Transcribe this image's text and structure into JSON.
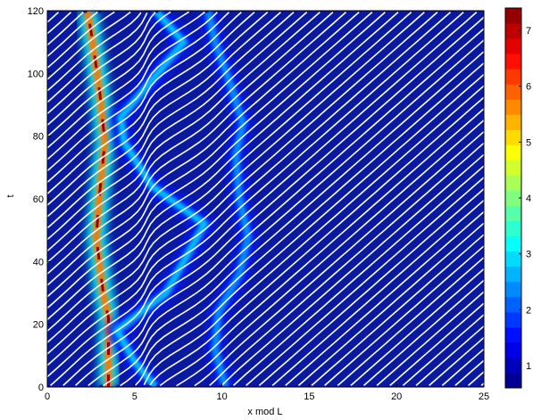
{
  "chart_data": {
    "type": "heatmap",
    "title": "",
    "xlabel": "x mod L",
    "ylabel": "t",
    "xlim": [
      0,
      25
    ],
    "ylim": [
      0,
      120
    ],
    "xticks": [
      "0",
      "5",
      "10",
      "15",
      "20",
      "25"
    ],
    "yticks": [
      "0",
      "20",
      "40",
      "60",
      "80",
      "100",
      "120"
    ],
    "grid": false,
    "colorbar": {
      "range": [
        0.6,
        7.4
      ],
      "ticks": [
        "1",
        "2",
        "3",
        "4",
        "5",
        "6",
        "7"
      ],
      "colormap": "jet"
    },
    "overlay": {
      "description_type": "trajectories",
      "line_color": "#ffffff",
      "marker_color": "#1010a0",
      "count": 70,
      "mean_slope_x_per_t": 0.205
    },
    "bands": [
      {
        "name": "left",
        "points": [
          [
            3.5,
            0
          ],
          [
            3.5,
            22
          ],
          [
            3.2,
            30
          ],
          [
            2.8,
            48
          ],
          [
            3.0,
            62
          ],
          [
            3.3,
            78
          ],
          [
            3.0,
            94
          ],
          [
            2.6,
            110
          ],
          [
            2.3,
            120
          ]
        ],
        "peak": 7.2
      },
      {
        "name": "middle",
        "points": [
          [
            6.2,
            0
          ],
          [
            5.0,
            8
          ],
          [
            4.0,
            18
          ],
          [
            6.8,
            30
          ],
          [
            8.2,
            44
          ],
          [
            9.0,
            52
          ],
          [
            6.0,
            64
          ],
          [
            4.4,
            78
          ],
          [
            4.2,
            86
          ],
          [
            6.0,
            98
          ],
          [
            7.8,
            110
          ],
          [
            6.2,
            120
          ]
        ],
        "peak": 3.4
      },
      {
        "name": "right",
        "points": [
          [
            10.2,
            0
          ],
          [
            9.6,
            12
          ],
          [
            9.8,
            24
          ],
          [
            11.0,
            36
          ],
          [
            11.5,
            48
          ],
          [
            11.0,
            60
          ],
          [
            10.8,
            74
          ],
          [
            11.2,
            84
          ],
          [
            10.4,
            98
          ],
          [
            9.6,
            110
          ],
          [
            9.2,
            120
          ]
        ],
        "peak": 3.0
      }
    ]
  }
}
